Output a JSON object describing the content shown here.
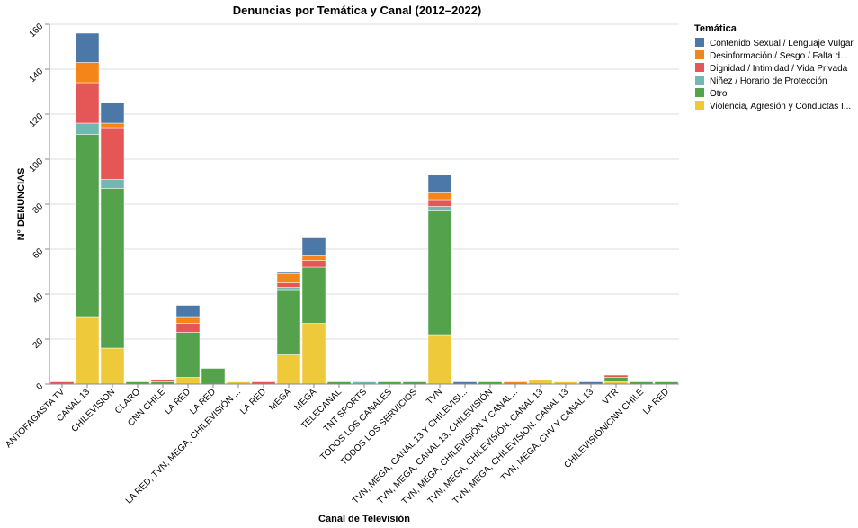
{
  "chart_data": {
    "type": "bar",
    "stacked": true,
    "title": "Denuncias por Temática y Canal (2012–2022)",
    "xlabel": "Canal de Televisión",
    "ylabel": "N° DENUNCIAS",
    "ylim": [
      0,
      160
    ],
    "yticks": [
      0,
      20,
      40,
      60,
      80,
      100,
      120,
      140,
      160
    ],
    "grid": true,
    "legend_title": "Temática",
    "legend_position": "top-right",
    "categories": [
      "ANTOFAGASTA TV",
      "CANAL 13",
      "CHILEVISIÓN",
      "CLARO",
      "CNN CHILE",
      "LA RED",
      "LA RED",
      "LA RED, TVN, MEGA, CHILEVISIÓN ...",
      "LA  RED",
      "MEGA",
      "MEGA",
      "TELECANAL",
      "TNT SPORTS",
      "TODOS LOS CANALES",
      "TODOS LOS SERVICIOS",
      "TVN",
      "TVN, MEGA, CANAL 13 Y CHILEVISI...",
      "TVN, MEGA, CANAL 13, CHILEVISIÓN",
      "TVN, MEGA, CHILEVISIÓN Y CANAL...",
      "TVN, MEGA, CHILEVISIÓN, CANAL 13",
      "TVN, MEGA, CHILEVISIÓN. CANAL 13",
      "TVN, MEGA, CHV Y CANAL 13",
      "VTR",
      "CHILEVISIÓN/CNN CHILE",
      "LA RED"
    ],
    "series": [
      {
        "name": "Violencia, Agresión y Conductas I...",
        "color": "#eeca3b",
        "values": [
          0,
          30,
          16,
          0,
          0,
          3,
          0,
          1,
          0,
          13,
          27,
          0,
          0,
          0,
          0,
          22,
          0,
          0,
          0,
          2,
          1,
          0,
          1,
          0,
          0
        ]
      },
      {
        "name": "Otro",
        "color": "#54a24b",
        "values": [
          0,
          81,
          71,
          1,
          1,
          20,
          7,
          0,
          0,
          29,
          25,
          1,
          0,
          1,
          1,
          55,
          0,
          1,
          0,
          0,
          0,
          0,
          2,
          1,
          1
        ]
      },
      {
        "name": "Niñez / Horario de Protección",
        "color": "#72b7b2",
        "values": [
          0,
          5,
          4,
          0,
          0,
          0,
          0,
          0,
          0,
          1,
          0,
          0,
          1,
          0,
          0,
          2,
          0,
          0,
          0,
          0,
          0,
          0,
          0,
          0,
          0
        ]
      },
      {
        "name": "Dignidad / Intimidad / Vida Privada",
        "color": "#e45756",
        "values": [
          1,
          18,
          23,
          0,
          1,
          4,
          0,
          0,
          1,
          2,
          3,
          0,
          0,
          0,
          0,
          3,
          0,
          0,
          0,
          0,
          0,
          0,
          1,
          0,
          0
        ]
      },
      {
        "name": "Desinformación / Sesgo / Falta d...",
        "color": "#f58518",
        "values": [
          0,
          9,
          2,
          0,
          0,
          3,
          0,
          0,
          0,
          4,
          2,
          0,
          0,
          0,
          0,
          3,
          0,
          0,
          1,
          0,
          0,
          0,
          0,
          0,
          0
        ]
      },
      {
        "name": "Contenido Sexual / Lenguaje Vulgar",
        "color": "#4c78a8",
        "values": [
          0,
          13,
          9,
          0,
          0,
          5,
          0,
          0,
          0,
          1,
          8,
          0,
          0,
          0,
          0,
          8,
          1,
          0,
          0,
          0,
          0,
          1,
          0,
          0,
          0
        ]
      }
    ],
    "legend_order": [
      "Contenido Sexual / Lenguaje Vulgar",
      "Desinformación / Sesgo / Falta d...",
      "Dignidad / Intimidad / Vida Privada",
      "Niñez / Horario de Protección",
      "Otro",
      "Violencia, Agresión y Conductas I..."
    ]
  }
}
